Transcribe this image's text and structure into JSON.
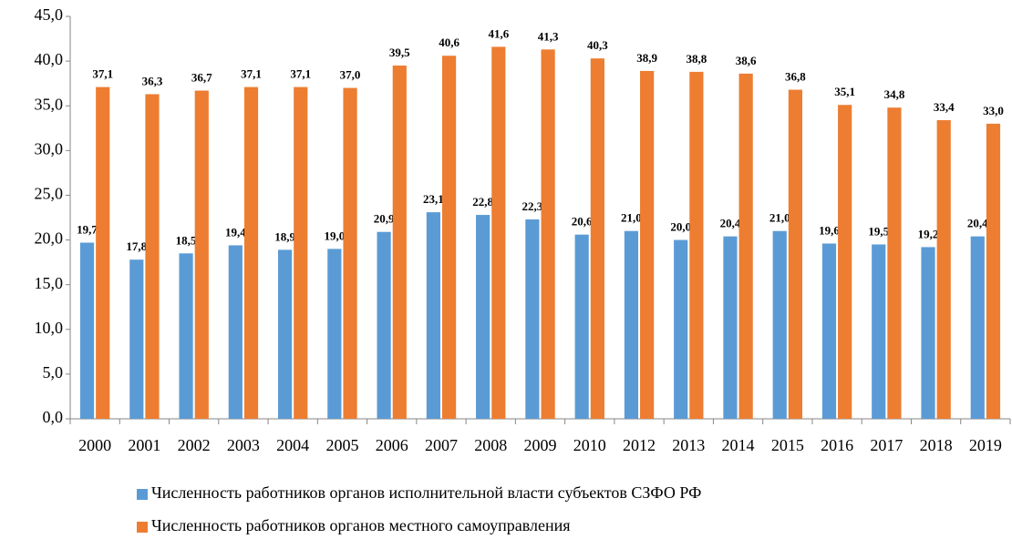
{
  "chart_data": {
    "type": "bar",
    "categories": [
      "2000",
      "2001",
      "2002",
      "2003",
      "2004",
      "2005",
      "2006",
      "2007",
      "2008",
      "2009",
      "2010",
      "2012",
      "2013",
      "2014",
      "2015",
      "2016",
      "2017",
      "2018",
      "2019"
    ],
    "series": [
      {
        "name": "Численность работников органов исполнительной власти субъектов СЗФО РФ",
        "color": "#5b9bd5",
        "values": [
          19.7,
          17.8,
          18.5,
          19.4,
          18.9,
          19.0,
          20.9,
          23.1,
          22.8,
          22.3,
          20.6,
          21.0,
          20.0,
          20.4,
          21.0,
          19.6,
          19.5,
          19.2,
          20.4
        ],
        "value_labels": [
          "19,7",
          "17,8",
          "18,5",
          "19,4",
          "18,9",
          "19,0",
          "20,9",
          "23,1",
          "22,8",
          "22,3",
          "20,6",
          "21,0",
          "20,0",
          "20,4",
          "21,0",
          "19,6",
          "19,5",
          "19,2",
          "20,4"
        ]
      },
      {
        "name": "Численность работников органов местного самоуправления",
        "color": "#ed7d31",
        "values": [
          37.1,
          36.3,
          36.7,
          37.1,
          37.1,
          37.0,
          39.5,
          40.6,
          41.6,
          41.3,
          40.3,
          38.9,
          38.8,
          38.6,
          36.8,
          35.1,
          34.8,
          33.4,
          33.0
        ],
        "value_labels": [
          "37,1",
          "36,3",
          "36,7",
          "37,1",
          "37,1",
          "37,0",
          "39,5",
          "40,6",
          "41,6",
          "41,3",
          "40,3",
          "38,9",
          "38,8",
          "38,6",
          "36,8",
          "35,1",
          "34,8",
          "33,4",
          "33,0"
        ]
      }
    ],
    "ylim": [
      0,
      45
    ],
    "yticks": [
      {
        "value": 0,
        "label": "0,0"
      },
      {
        "value": 5,
        "label": "5,0"
      },
      {
        "value": 10,
        "label": "10,0"
      },
      {
        "value": 15,
        "label": "15,0"
      },
      {
        "value": 20,
        "label": "20,0"
      },
      {
        "value": 25,
        "label": "25,0"
      },
      {
        "value": 30,
        "label": "30,0"
      },
      {
        "value": 35,
        "label": "35,0"
      },
      {
        "value": 40,
        "label": "40,0"
      },
      {
        "value": 45,
        "label": "45,0"
      }
    ],
    "grid": false,
    "legend": "bottom"
  }
}
